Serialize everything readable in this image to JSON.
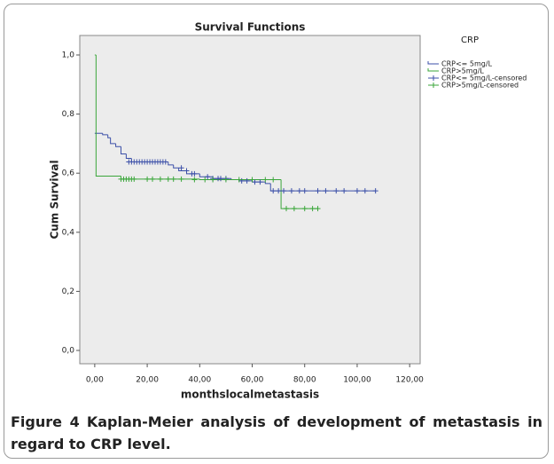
{
  "chart_data": {
    "type": "kaplan-meier",
    "title": "Survival Functions",
    "x_label": "monthslocalmetastasis",
    "y_label": "Cum Survival",
    "legend_title": "CRP",
    "xlim": [
      -5.7,
      124
    ],
    "ylim": [
      -0.045,
      1.066
    ],
    "xticks": [
      {
        "value": 0,
        "label": "0,00"
      },
      {
        "value": 20,
        "label": "20,00"
      },
      {
        "value": 40,
        "label": "40,00"
      },
      {
        "value": 60,
        "label": "60,00"
      },
      {
        "value": 80,
        "label": "80,00"
      },
      {
        "value": 100,
        "label": "100,00"
      },
      {
        "value": 120,
        "label": "120,00"
      }
    ],
    "yticks": [
      {
        "value": 0,
        "label": "0,0"
      },
      {
        "value": 0.2,
        "label": "0,2"
      },
      {
        "value": 0.4,
        "label": "0,4"
      },
      {
        "value": 0.6,
        "label": "0,6"
      },
      {
        "value": 0.8,
        "label": "0,8"
      },
      {
        "value": 1,
        "label": "1,0"
      }
    ],
    "series": [
      {
        "name": "CRP<= 5mg/L",
        "kind": "step",
        "color": "#3b4fa8",
        "x": [
          0,
          3,
          5,
          6,
          8,
          10,
          12,
          14,
          28,
          30,
          32,
          35,
          40,
          45,
          52,
          55,
          60,
          65,
          67,
          107
        ],
        "values": [
          0.735,
          0.73,
          0.72,
          0.7,
          0.69,
          0.665,
          0.65,
          0.638,
          0.628,
          0.618,
          0.608,
          0.598,
          0.588,
          0.582,
          0.578,
          0.574,
          0.57,
          0.565,
          0.54,
          0.54
        ]
      },
      {
        "name": "CRP>5mg/L",
        "kind": "step",
        "color": "#3aa63a",
        "x": [
          0,
          0.5,
          10,
          40,
          71,
          85
        ],
        "values": [
          1.0,
          0.59,
          0.58,
          0.578,
          0.48,
          0.48
        ]
      },
      {
        "name": "CRP<= 5mg/L-censored",
        "kind": "censored",
        "color": "#3b4fa8",
        "x": [
          13,
          14,
          15,
          16,
          17,
          18,
          19,
          20,
          21,
          22,
          23,
          24,
          25,
          26,
          27,
          33,
          35,
          37,
          38,
          43,
          45,
          47,
          48,
          50,
          56,
          58,
          61,
          63,
          68,
          70,
          72,
          75,
          78,
          80,
          85,
          88,
          92,
          95,
          100,
          103,
          107
        ],
        "values": [
          0.638,
          0.638,
          0.638,
          0.638,
          0.638,
          0.638,
          0.638,
          0.638,
          0.638,
          0.638,
          0.638,
          0.638,
          0.638,
          0.638,
          0.638,
          0.618,
          0.608,
          0.598,
          0.598,
          0.588,
          0.582,
          0.582,
          0.582,
          0.582,
          0.574,
          0.574,
          0.57,
          0.57,
          0.54,
          0.54,
          0.54,
          0.54,
          0.54,
          0.54,
          0.54,
          0.54,
          0.54,
          0.54,
          0.54,
          0.54,
          0.54
        ]
      },
      {
        "name": "CRP>5mg/L-censored",
        "kind": "censored",
        "color": "#3aa63a",
        "x": [
          10,
          11,
          12,
          13,
          14,
          15,
          20,
          22,
          25,
          28,
          30,
          33,
          38,
          42,
          45,
          50,
          55,
          60,
          65,
          68,
          73,
          76,
          80,
          83,
          85
        ],
        "values": [
          0.58,
          0.58,
          0.58,
          0.58,
          0.58,
          0.58,
          0.58,
          0.58,
          0.58,
          0.58,
          0.58,
          0.58,
          0.578,
          0.578,
          0.578,
          0.578,
          0.578,
          0.578,
          0.578,
          0.578,
          0.48,
          0.48,
          0.48,
          0.48,
          0.48
        ]
      }
    ]
  },
  "caption": {
    "label": "Figure 4",
    "text": "Kaplan-Meier analysis of development of metastasis in regard to CRP level."
  }
}
